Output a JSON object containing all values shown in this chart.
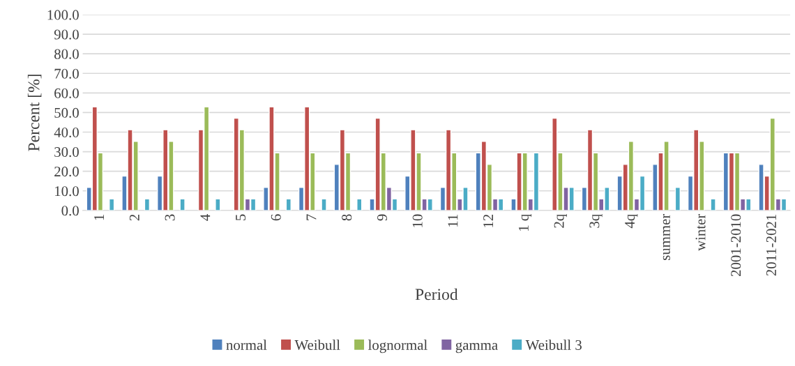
{
  "chart_data": {
    "type": "bar",
    "xlabel": "Period",
    "ylabel": "Percent [%]",
    "categories": [
      "1",
      "2",
      "3",
      "4",
      "5",
      "6",
      "7",
      "8",
      "9",
      "10",
      "11",
      "12",
      "1 q",
      "2q",
      "3q",
      "4q",
      "summer",
      "winter",
      "2001-2010",
      "2011-2021"
    ],
    "series": [
      {
        "name": "normal",
        "color": "#4f81bd",
        "values": [
          11.8,
          17.6,
          17.6,
          null,
          null,
          11.8,
          11.8,
          23.5,
          5.9,
          17.6,
          11.8,
          29.4,
          5.9,
          null,
          11.8,
          17.6,
          23.5,
          17.6,
          29.4,
          23.5
        ]
      },
      {
        "name": "Weibull",
        "color": "#c0504d",
        "values": [
          52.9,
          41.2,
          41.2,
          41.2,
          47.1,
          52.9,
          52.9,
          41.2,
          47.1,
          41.2,
          41.2,
          35.3,
          29.4,
          47.1,
          41.2,
          23.5,
          29.4,
          41.2,
          29.4,
          17.6
        ]
      },
      {
        "name": "lognormal",
        "color": "#9bbb59",
        "values": [
          29.4,
          35.3,
          35.3,
          52.9,
          41.2,
          29.4,
          29.4,
          29.4,
          29.4,
          29.4,
          29.4,
          23.5,
          29.4,
          29.4,
          29.4,
          35.3,
          35.3,
          35.3,
          29.4,
          47.1
        ]
      },
      {
        "name": "gamma",
        "color": "#8064a2",
        "values": [
          null,
          null,
          null,
          null,
          5.9,
          null,
          null,
          null,
          11.8,
          5.9,
          5.9,
          5.9,
          5.9,
          11.8,
          5.9,
          5.9,
          null,
          null,
          5.9,
          5.9
        ]
      },
      {
        "name": "Weibull 3",
        "color": "#4bacc6",
        "values": [
          5.9,
          5.9,
          5.9,
          5.9,
          5.9,
          5.9,
          5.9,
          5.9,
          5.9,
          5.9,
          11.8,
          5.9,
          29.4,
          11.8,
          11.8,
          17.6,
          11.8,
          5.9,
          5.9,
          5.9
        ]
      }
    ],
    "ylim": [
      0,
      100
    ],
    "yticks": [
      {
        "value": 0,
        "label": "0.0"
      },
      {
        "value": 10,
        "label": "10.0"
      },
      {
        "value": 20,
        "label": "20.0"
      },
      {
        "value": 30,
        "label": "30.0"
      },
      {
        "value": 40,
        "label": "40.0"
      },
      {
        "value": 50,
        "label": "50.0"
      },
      {
        "value": 60,
        "label": "60.0"
      },
      {
        "value": 70,
        "label": "70.0"
      },
      {
        "value": 80,
        "label": "80.0"
      },
      {
        "value": 90,
        "label": "90.0"
      },
      {
        "value": 100,
        "label": "100.0"
      }
    ],
    "grid": "y",
    "legend": "bottom"
  }
}
